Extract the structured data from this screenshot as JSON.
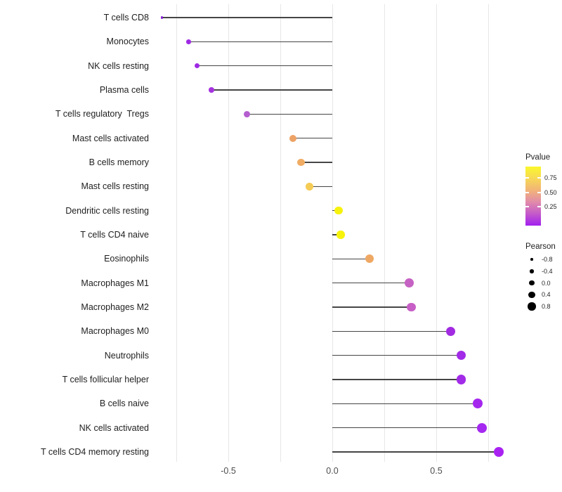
{
  "chart_data": {
    "type": "lollipop",
    "orientation": "horizontal",
    "title": "",
    "xlabel": "",
    "ylabel": "",
    "categories": [
      "T cells CD8",
      "Monocytes",
      "NK cells resting",
      "Plasma cells",
      "T cells regulatory  Tregs",
      "Mast cells activated",
      "B cells memory",
      "Mast cells resting",
      "Dendritic cells resting",
      "T cells CD4 naive",
      "Eosinophils",
      "Macrophages M1",
      "Macrophages M2",
      "Macrophages M0",
      "Neutrophils",
      "T cells follicular helper",
      "B cells naive",
      "NK cells activated",
      "T cells CD4 memory resting"
    ],
    "series": [
      {
        "name": "Pearson",
        "values": [
          -0.82,
          -0.69,
          -0.65,
          -0.58,
          -0.41,
          -0.19,
          -0.15,
          -0.11,
          0.03,
          0.04,
          0.18,
          0.37,
          0.38,
          0.57,
          0.62,
          0.62,
          0.7,
          0.72,
          0.8
        ]
      }
    ],
    "pvalue_estimates": [
      0.01,
      0.02,
      0.02,
      0.05,
      0.15,
      0.5,
      0.5,
      0.65,
      0.9,
      0.9,
      0.5,
      0.3,
      0.3,
      0.03,
      0.02,
      0.02,
      0.02,
      0.02,
      0.01
    ],
    "point_colors": [
      "#8520d6",
      "#9f2be5",
      "#9d2ae4",
      "#a633df",
      "#b45ecf",
      "#eda266",
      "#f0ac63",
      "#f5cc55",
      "#f6f20d",
      "#f7f30b",
      "#efa863",
      "#c662c4",
      "#c75fc6",
      "#a22be2",
      "#a22be8",
      "#a22be8",
      "#a527ee",
      "#a529f0",
      "#a922f2"
    ],
    "stem_color": "#454545",
    "gridline_color": "#e7e7e7",
    "xlim": [
      -0.9,
      0.88
    ],
    "grid": "vertical-only",
    "gridline_values": [
      -0.75,
      -0.5,
      -0.25,
      0,
      0.25,
      0.5,
      0.75
    ],
    "x_ticks": [
      "-0.5",
      "0.0",
      "0.5"
    ],
    "x_tick_values": [
      -0.5,
      0.0,
      0.5
    ],
    "legend_pvalue": {
      "title": "Pvalue",
      "tick_labels": [
        "0.75",
        "0.50",
        "0.25"
      ],
      "gradient_top_to_bottom": [
        "#fbf72b",
        "#f2b377",
        "#e18baa",
        "#a21ff0"
      ]
    },
    "legend_pearson": {
      "title": "Pearson",
      "labels": [
        "-0.8",
        "-0.4",
        "0.0",
        "0.4",
        "0.8"
      ],
      "dot_color": "#000000"
    }
  }
}
